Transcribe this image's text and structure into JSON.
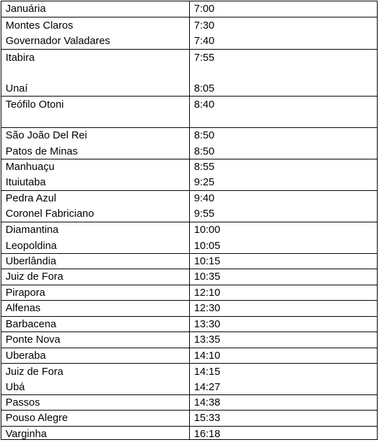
{
  "rows": [
    {
      "city": "Januária",
      "time": "7:00"
    },
    {
      "city": "Montes Claros",
      "time": "7:30"
    },
    {
      "city": "Governador Valadares",
      "time": "7:40"
    },
    {
      "city": "Itabira",
      "time": "7:55"
    },
    {
      "city": "Unaí",
      "time": "8:05"
    },
    {
      "city": "Teófilo Otoni",
      "time": "8:40"
    },
    {
      "city": "São João Del Rei",
      "time": "8:50"
    },
    {
      "city": "Patos de Minas",
      "time": "8:50"
    },
    {
      "city": "Manhuaçu",
      "time": "8:55"
    },
    {
      "city": "Ituiutaba",
      "time": "9:25"
    },
    {
      "city": "Pedra Azul",
      "time": "9:40"
    },
    {
      "city": "Coronel Fabriciano",
      "time": "9:55"
    },
    {
      "city": "Diamantina",
      "time": "10:00"
    },
    {
      "city": "Leopoldina",
      "time": "10:05"
    },
    {
      "city": "Uberlândia",
      "time": "10:15"
    },
    {
      "city": "Juiz de Fora",
      "time": "10:35"
    },
    {
      "city": "Pirapora",
      "time": "12:10"
    },
    {
      "city": "Alfenas",
      "time": "12:30"
    },
    {
      "city": "Barbacena",
      "time": "13:30"
    },
    {
      "city": "Ponte Nova",
      "time": "13:35"
    },
    {
      "city": "Uberaba",
      "time": "14:10"
    },
    {
      "city": "Juiz de Fora",
      "time": "14:15"
    },
    {
      "city": "Ubá",
      "time": "14:27"
    },
    {
      "city": "Passos",
      "time": "14:38"
    },
    {
      "city": "Pouso Alegre",
      "time": "15:33"
    },
    {
      "city": "Varginha",
      "time": "16:18"
    }
  ]
}
